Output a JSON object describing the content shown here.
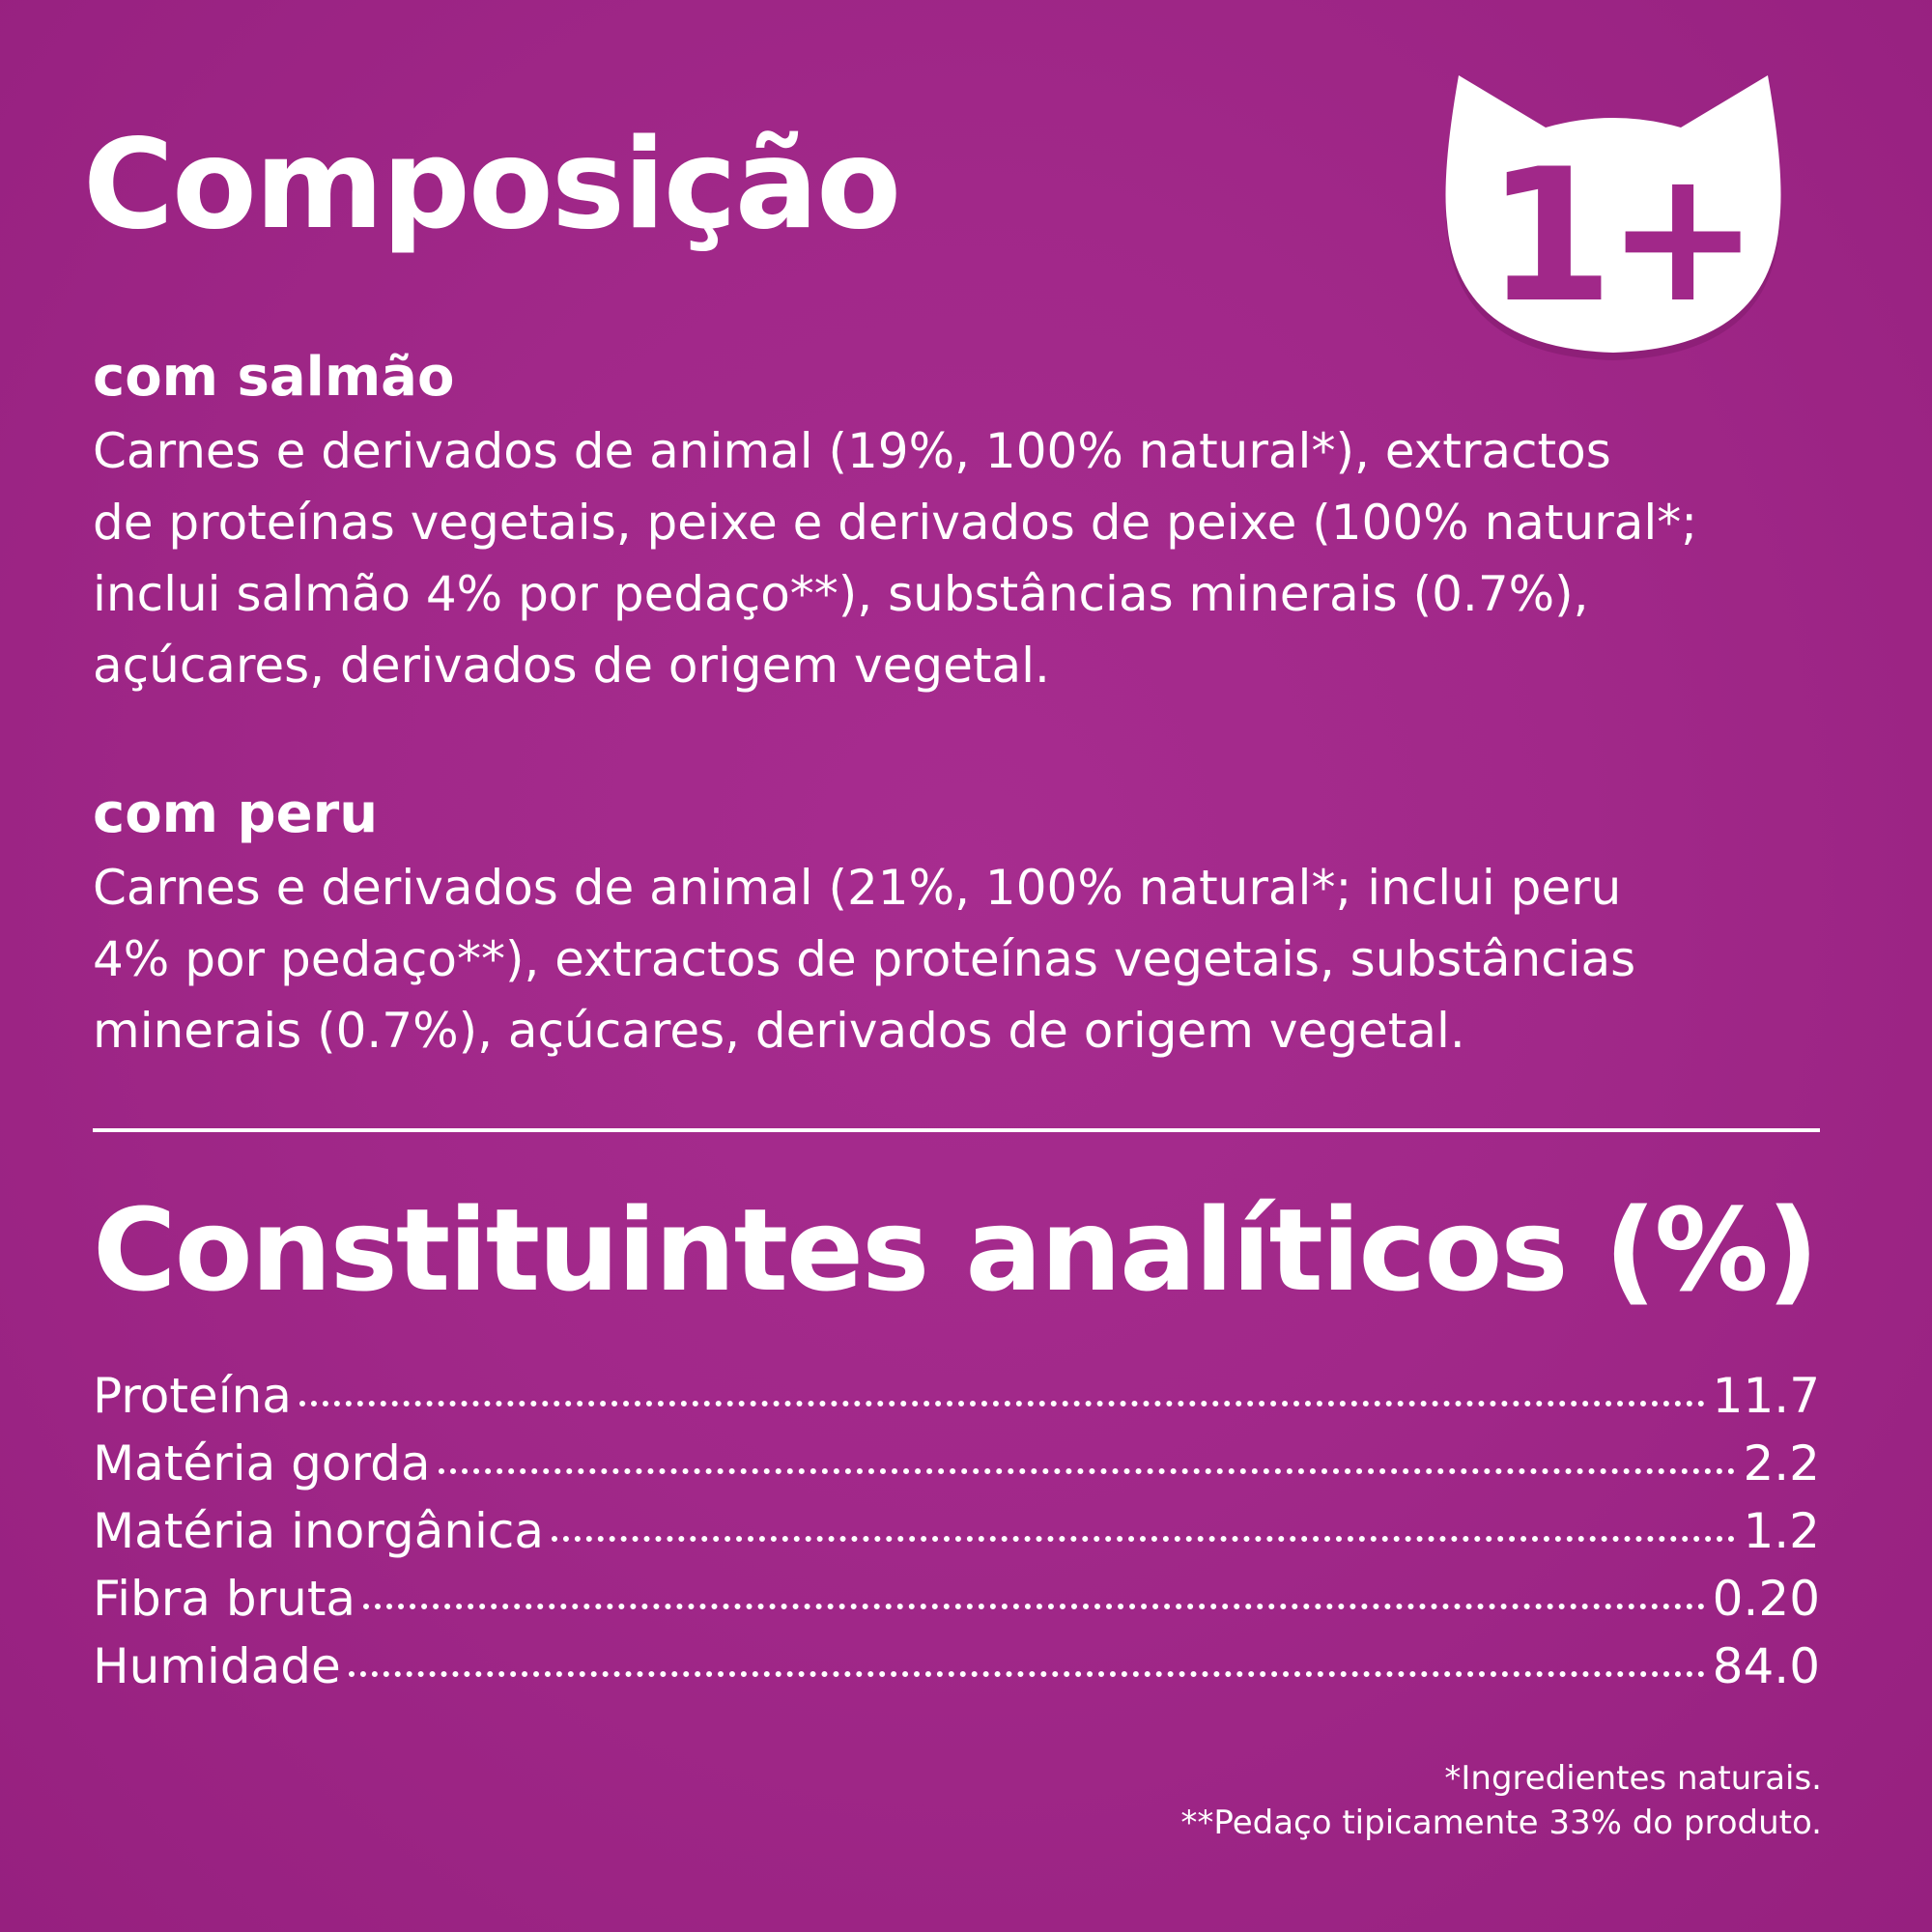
{
  "composicao": {
    "title": "Composição",
    "badge_text": "1+",
    "sections": [
      {
        "title": "com salmão",
        "lines": [
          "Carnes e derivados de animal (19%, 100% natural*), extractos",
          "de proteínas vegetais, peixe e derivados de peixe (100% natural*;",
          "inclui salmão 4% por pedaço**), substâncias minerais (0.7%),",
          "açúcares, derivados de origem vegetal."
        ]
      },
      {
        "title": "com peru",
        "lines": [
          "Carnes e derivados de animal (21%, 100% natural*; inclui peru",
          "4% por pedaço**), extractos de proteínas vegetais, substâncias",
          "minerais (0.7%), açúcares, derivados de origem vegetal."
        ]
      }
    ]
  },
  "constituintes": {
    "title": "Constituintes analíticos (%)",
    "rows": [
      {
        "label": "Proteína",
        "value": "11.7"
      },
      {
        "label": "Matéria gorda",
        "value": "2.2"
      },
      {
        "label": "Matéria inorgânica",
        "value": "1.2"
      },
      {
        "label": "Fibra bruta",
        "value": "0.20"
      },
      {
        "label": "Humidade",
        "value": "84.0"
      }
    ]
  },
  "footnotes": [
    "*Ingredientes naturais.",
    "**Pedaço tipicamente 33% do produto."
  ],
  "colors": {
    "background": "#a12889",
    "text": "#ffffff",
    "badge_number": "#a12889"
  },
  "icons": {
    "badge": "cat-head-icon"
  }
}
